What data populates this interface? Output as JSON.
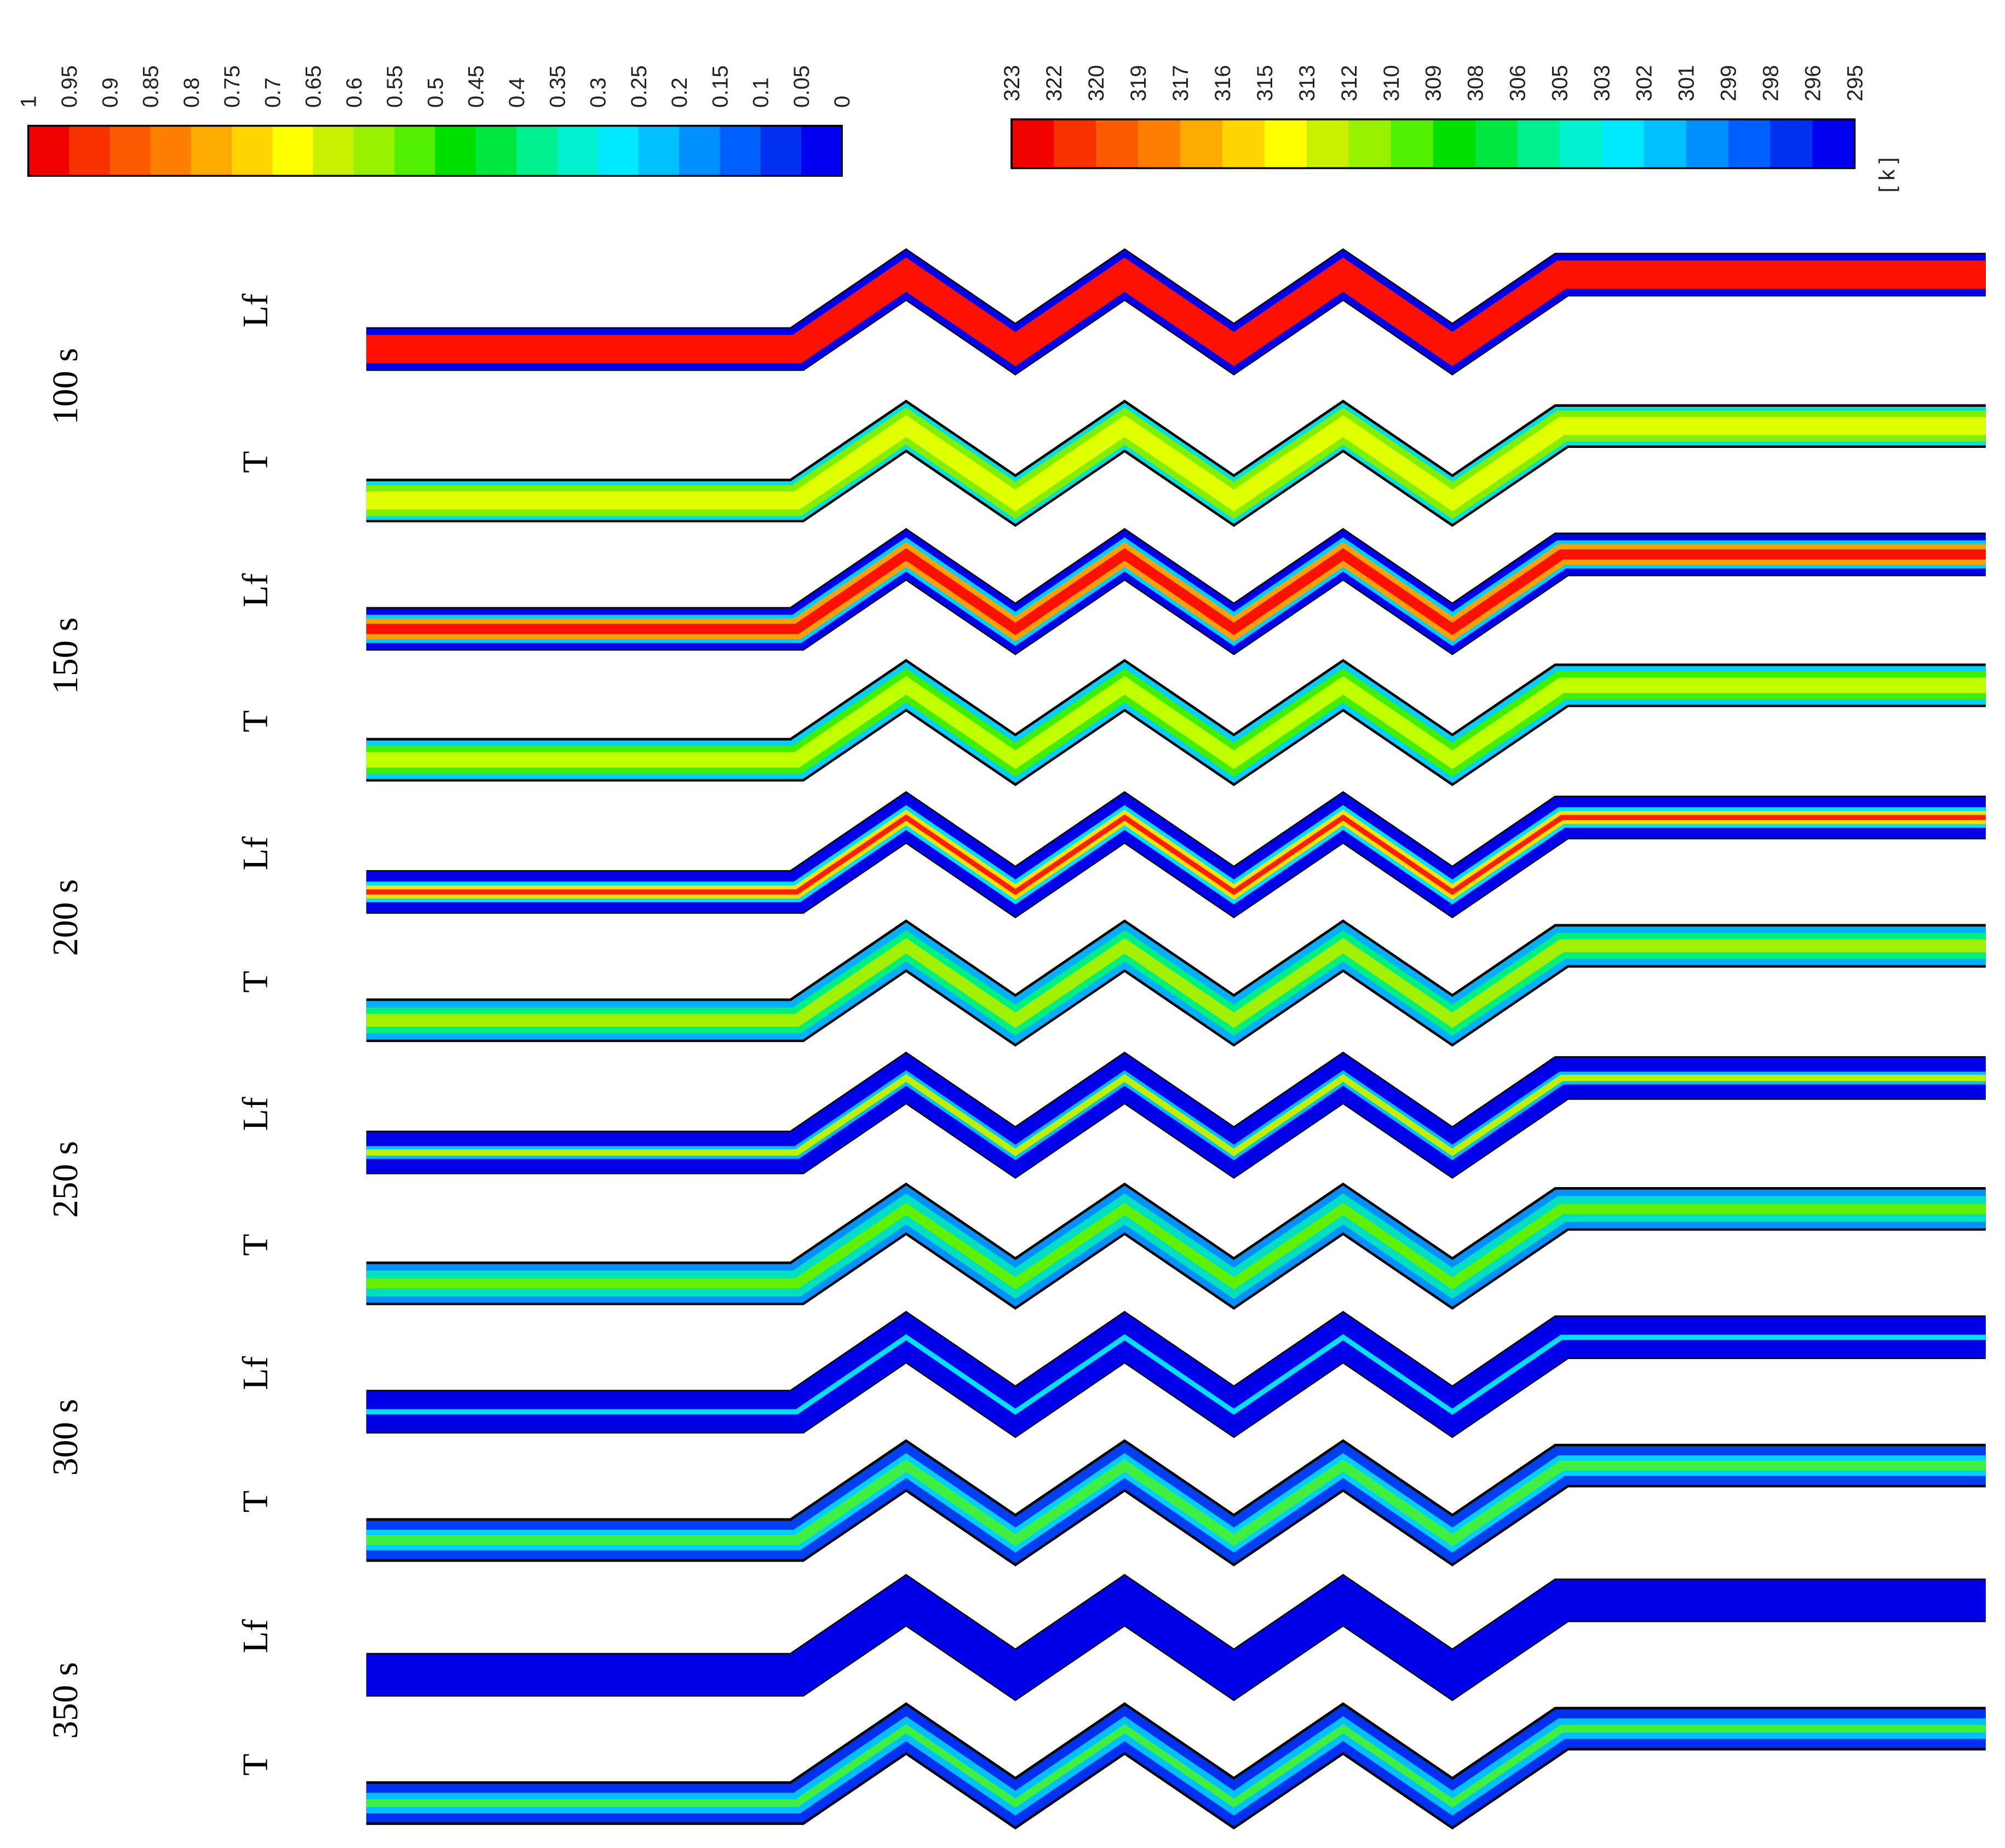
{
  "colorbars": [
    {
      "labels": [
        "1",
        "0.95",
        "0.9",
        "0.85",
        "0.8",
        "0.75",
        "0.7",
        "0.65",
        "0.6",
        "0.55",
        "0.5",
        "0.45",
        "0.4",
        "0.35",
        "0.3",
        "0.25",
        "0.2",
        "0.15",
        "0.1",
        "0.05",
        "0"
      ],
      "colors": [
        "#f00000",
        "#f83000",
        "#fa5a00",
        "#ff8000",
        "#ffaa00",
        "#ffd400",
        "#ffff00",
        "#c8f000",
        "#96f000",
        "#50f000",
        "#00e000",
        "#00e840",
        "#00f090",
        "#00f0d0",
        "#00e8ff",
        "#00c0ff",
        "#0090ff",
        "#0060ff",
        "#0030f0",
        "#0000f0"
      ]
    },
    {
      "labels": [
        "323",
        "322",
        "320",
        "319",
        "317",
        "316",
        "315",
        "313",
        "312",
        "310",
        "309",
        "308",
        "306",
        "305",
        "303",
        "302",
        "301",
        "299",
        "298",
        "296",
        "295"
      ],
      "colors": [
        "#f00000",
        "#f83000",
        "#fa5a00",
        "#ff8000",
        "#ffaa00",
        "#ffd400",
        "#ffff00",
        "#c8f000",
        "#96f000",
        "#50f000",
        "#00e000",
        "#00e840",
        "#00f090",
        "#00f0d0",
        "#00e8ff",
        "#00c0ff",
        "#0090ff",
        "#0060ff",
        "#0030f0",
        "#0000f0"
      ],
      "unit": "[ k ]"
    }
  ],
  "rows": [
    {
      "time": "100 s",
      "fields": [
        "Lf",
        "T"
      ]
    },
    {
      "time": "150 s",
      "fields": [
        "Lf",
        "T"
      ]
    },
    {
      "time": "200 s",
      "fields": [
        "Lf",
        "T"
      ]
    },
    {
      "time": "250 s",
      "fields": [
        "Lf",
        "T"
      ]
    },
    {
      "time": "300 s",
      "fields": [
        "Lf",
        "T"
      ]
    },
    {
      "time": "350 s",
      "fields": [
        "Lf",
        "T"
      ]
    }
  ]
}
